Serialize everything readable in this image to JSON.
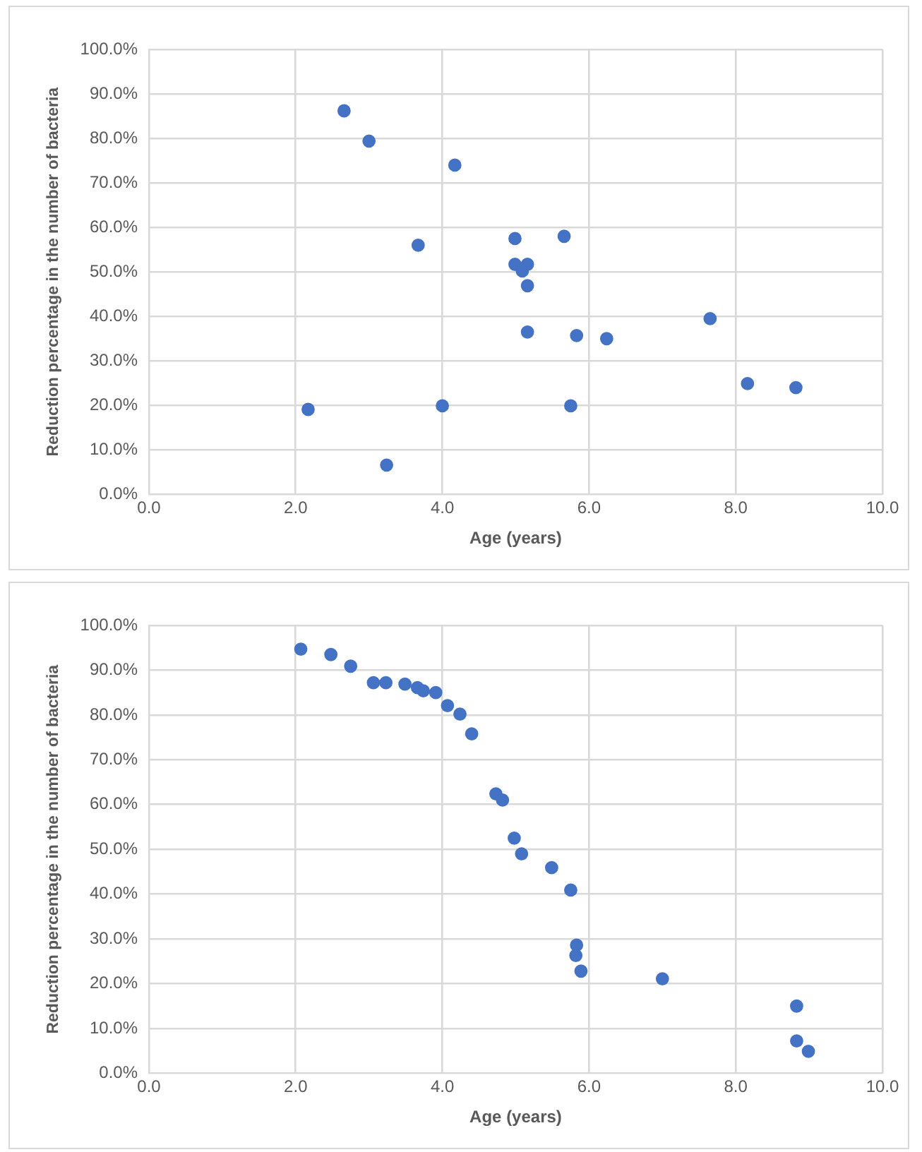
{
  "chart_data": [
    {
      "type": "scatter",
      "xlabel": "Age (years)",
      "ylabel": "Reduction percentage in the number of bacteria",
      "marker": "circle",
      "grid": true,
      "legend": false,
      "xlim": [
        0,
        10
      ],
      "xticks": [
        {
          "value": 0,
          "label": "0.0"
        },
        {
          "value": 2,
          "label": "2.0"
        },
        {
          "value": 4,
          "label": "4.0"
        },
        {
          "value": 6,
          "label": "6.0"
        },
        {
          "value": 8,
          "label": "8.0"
        },
        {
          "value": 10,
          "label": "10.0"
        }
      ],
      "ylim": [
        0,
        100
      ],
      "yticks": [
        {
          "value": 0,
          "label": "0.0%"
        },
        {
          "value": 10,
          "label": "10.0%"
        },
        {
          "value": 20,
          "label": "20.0%"
        },
        {
          "value": 30,
          "label": "30.0%"
        },
        {
          "value": 40,
          "label": "40.0%"
        },
        {
          "value": 50,
          "label": "50.0%"
        },
        {
          "value": 60,
          "label": "60.0%"
        },
        {
          "value": 70,
          "label": "70.0%"
        },
        {
          "value": 80,
          "label": "80.0%"
        },
        {
          "value": 90,
          "label": "90.0%"
        },
        {
          "value": 100,
          "label": "100.0%"
        }
      ],
      "series": [
        {
          "color": "#4472c4",
          "x": [
            2.66,
            3.0,
            4.17,
            3.67,
            4.99,
            5.66,
            4.99,
            5.16,
            5.09,
            5.16,
            5.16,
            5.83,
            6.24,
            7.65,
            8.16,
            8.82,
            2.17,
            4.0,
            5.75,
            3.24
          ],
          "values": [
            86.2,
            79.4,
            74.0,
            56.0,
            57.5,
            58.0,
            51.7,
            51.7,
            50.2,
            46.9,
            36.5,
            35.7,
            35.0,
            39.5,
            24.9,
            24.0,
            19.1,
            19.9,
            19.9,
            6.6
          ]
        }
      ]
    },
    {
      "type": "scatter",
      "xlabel": "Age (years)",
      "ylabel": "Reduction percentage in the number of bacteria",
      "marker": "circle",
      "grid": true,
      "legend": false,
      "xlim": [
        0,
        10
      ],
      "xticks": [
        {
          "value": 0,
          "label": "0.0"
        },
        {
          "value": 2,
          "label": "2.0"
        },
        {
          "value": 4,
          "label": "4.0"
        },
        {
          "value": 6,
          "label": "6.0"
        },
        {
          "value": 8,
          "label": "8.0"
        },
        {
          "value": 10,
          "label": "10.0"
        }
      ],
      "ylim": [
        0,
        100
      ],
      "yticks": [
        {
          "value": 0,
          "label": "0.0%"
        },
        {
          "value": 10,
          "label": "10.0%"
        },
        {
          "value": 20,
          "label": "20.0%"
        },
        {
          "value": 30,
          "label": "30.0%"
        },
        {
          "value": 40,
          "label": "40.0%"
        },
        {
          "value": 50,
          "label": "50.0%"
        },
        {
          "value": 60,
          "label": "60.0%"
        },
        {
          "value": 70,
          "label": "70.0%"
        },
        {
          "value": 80,
          "label": "80.0%"
        },
        {
          "value": 90,
          "label": "90.0%"
        },
        {
          "value": 100,
          "label": "100.0%"
        }
      ],
      "series": [
        {
          "color": "#4472c4",
          "x": [
            2.07,
            2.48,
            2.75,
            3.06,
            3.23,
            3.49,
            3.66,
            3.74,
            3.91,
            4.07,
            4.24,
            4.4,
            4.73,
            4.82,
            4.98,
            5.08,
            5.49,
            5.75,
            5.83,
            5.82,
            5.89,
            7.0,
            8.83,
            8.83,
            8.99
          ],
          "values": [
            94.7,
            93.5,
            90.9,
            87.2,
            87.2,
            86.9,
            86.1,
            85.4,
            85.0,
            82.1,
            80.2,
            75.8,
            62.4,
            61.0,
            52.5,
            49.0,
            45.9,
            40.9,
            28.6,
            26.3,
            22.8,
            21.1,
            15.0,
            7.2,
            4.9
          ]
        }
      ]
    }
  ]
}
